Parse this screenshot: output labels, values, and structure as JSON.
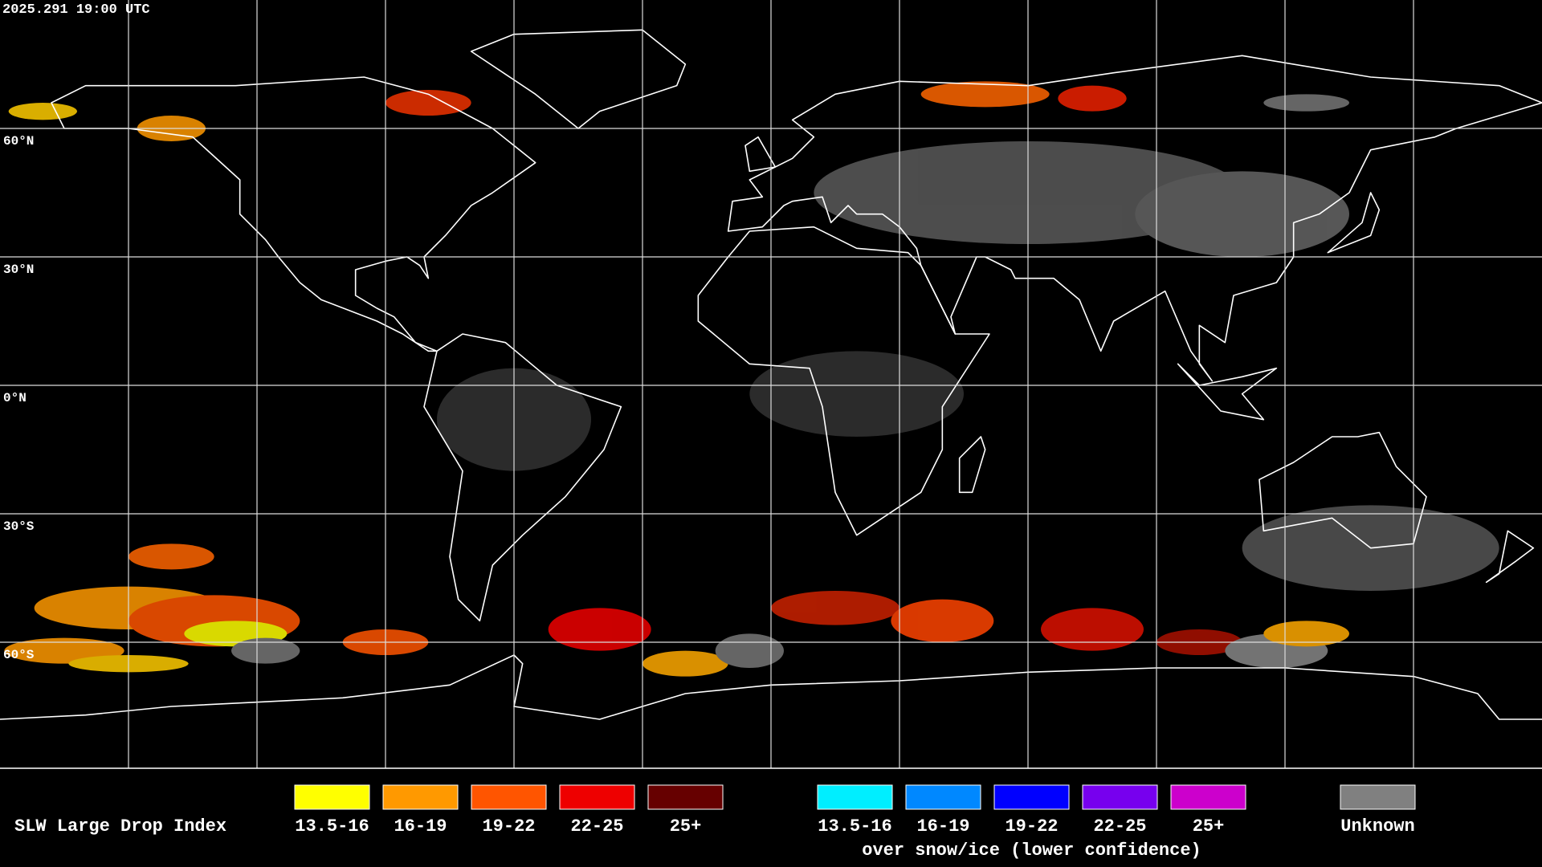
{
  "header": {
    "timestamp": "2025.291 19:00 UTC"
  },
  "map": {
    "latitude_labels": [
      "60°N",
      "30°N",
      "0°N",
      "30°S",
      "60°S"
    ]
  },
  "legend": {
    "title": "SLW Large Drop Index",
    "groups": [
      {
        "items": [
          {
            "label": "13.5-16",
            "color": "#ffff00"
          },
          {
            "label": "16-19",
            "color": "#ff9900"
          },
          {
            "label": "19-22",
            "color": "#ff5500"
          },
          {
            "label": "22-25",
            "color": "#ee0000"
          },
          {
            "label": "25+",
            "color": "#660000"
          }
        ]
      },
      {
        "items": [
          {
            "label": "13.5-16",
            "color": "#00eeff"
          },
          {
            "label": "16-19",
            "color": "#0088ff"
          },
          {
            "label": "19-22",
            "color": "#0000ff"
          },
          {
            "label": "22-25",
            "color": "#7700ee"
          },
          {
            "label": "25+",
            "color": "#cc00cc"
          }
        ],
        "caption": "over snow/ice (lower confidence)"
      },
      {
        "items": [
          {
            "label": "Unknown",
            "color": "#808080"
          }
        ]
      }
    ]
  }
}
